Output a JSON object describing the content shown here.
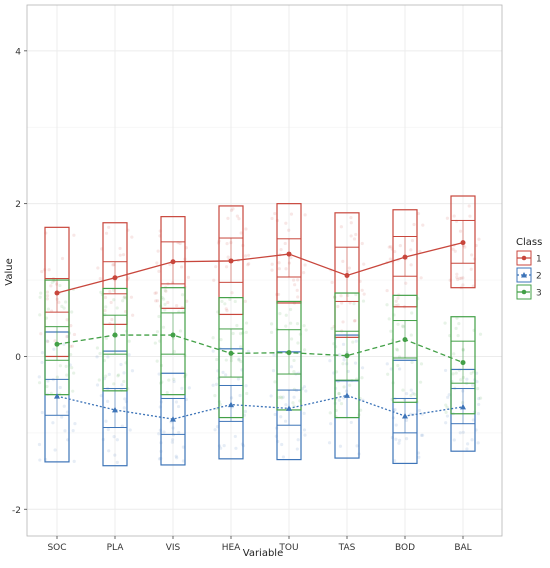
{
  "chart_data": {
    "type": "line",
    "xlabel": "Variable",
    "ylabel": "Value",
    "categories": [
      "SOC",
      "PLA",
      "VIS",
      "HEA",
      "TOU",
      "TAS",
      "BOD",
      "BAL"
    ],
    "ylim": [
      -2.35,
      4.6
    ],
    "yticks": [
      -2,
      0,
      2,
      4
    ],
    "grid": true,
    "legend": {
      "title": "Class",
      "position": "right"
    },
    "series": [
      {
        "name": "1",
        "color": "#c8463c",
        "dash": "solid",
        "marker": "circle",
        "means": [
          0.83,
          1.03,
          1.24,
          1.25,
          1.34,
          1.06,
          1.3,
          1.49
        ],
        "box_low": [
          0.58,
          0.82,
          0.95,
          0.97,
          1.04,
          0.72,
          1.05,
          1.22
        ],
        "box_high": [
          1.02,
          1.24,
          1.5,
          1.55,
          1.54,
          1.43,
          1.57,
          1.78
        ],
        "whisk_low": [
          0.0,
          0.42,
          0.63,
          0.55,
          0.7,
          0.25,
          0.65,
          0.9
        ],
        "whisk_high": [
          1.69,
          1.75,
          1.83,
          1.97,
          2.0,
          1.88,
          1.92,
          2.1
        ]
      },
      {
        "name": "2",
        "color": "#3d74b8",
        "dash": "dotted",
        "marker": "triangle",
        "means": [
          -0.52,
          -0.7,
          -0.82,
          -0.63,
          -0.68,
          -0.51,
          -0.78,
          -0.66
        ],
        "box_low": [
          -0.77,
          -0.93,
          -1.02,
          -0.85,
          -0.9,
          -0.8,
          -1.0,
          -0.88
        ],
        "box_high": [
          -0.3,
          -0.42,
          -0.55,
          -0.38,
          -0.44,
          -0.32,
          -0.55,
          -0.42
        ],
        "whisk_low": [
          -1.38,
          -1.43,
          -1.42,
          -1.34,
          -1.35,
          -1.33,
          -1.4,
          -1.24
        ],
        "whisk_high": [
          0.32,
          0.07,
          -0.22,
          0.1,
          0.06,
          0.28,
          -0.05,
          -0.17
        ]
      },
      {
        "name": "3",
        "color": "#43a047",
        "dash": "dashed",
        "marker": "square",
        "means": [
          0.16,
          0.28,
          0.28,
          0.04,
          0.05,
          0.01,
          0.22,
          -0.08
        ],
        "box_low": [
          -0.05,
          0.03,
          0.03,
          -0.27,
          -0.23,
          -0.31,
          -0.02,
          -0.35
        ],
        "box_high": [
          0.39,
          0.54,
          0.57,
          0.36,
          0.35,
          0.33,
          0.47,
          0.2
        ],
        "whisk_low": [
          -0.5,
          -0.45,
          -0.5,
          -0.8,
          -0.7,
          -0.8,
          -0.6,
          -0.75
        ],
        "whisk_high": [
          1.0,
          0.89,
          0.9,
          0.77,
          0.72,
          0.83,
          0.8,
          0.52
        ]
      }
    ]
  }
}
